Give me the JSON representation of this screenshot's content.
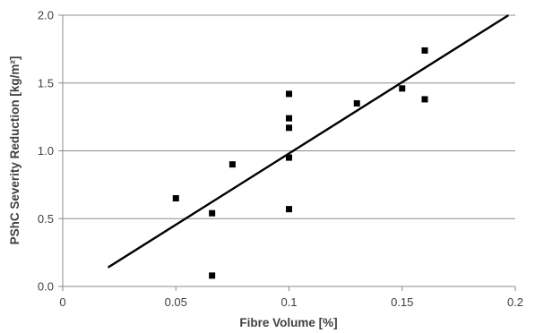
{
  "chart_data": {
    "type": "scatter",
    "title": "",
    "xlabel": "Fibre Volume [%]",
    "ylabel": "PShC Severity Reduction [kg/m²]",
    "xlim": [
      0,
      0.2
    ],
    "ylim": [
      0,
      2.0
    ],
    "x_ticks": [
      0,
      0.05,
      0.1,
      0.15,
      0.2
    ],
    "x_tick_labels": [
      "0",
      "0.05",
      "0.1",
      "0.15",
      "0.2"
    ],
    "y_ticks": [
      0,
      0.5,
      1.0,
      1.5,
      2.0
    ],
    "y_tick_labels": [
      "0.0",
      "0.5",
      "1.0",
      "1.5",
      "2.0"
    ],
    "grid": "horizontal",
    "legend": "none",
    "series": [
      {
        "marker": "square",
        "color": "#000000",
        "x": [
          0.05,
          0.066,
          0.066,
          0.075,
          0.1,
          0.1,
          0.1,
          0.1,
          0.1,
          0.13,
          0.15,
          0.16,
          0.16
        ],
        "y": [
          0.65,
          0.54,
          0.08,
          0.9,
          1.42,
          1.24,
          1.17,
          0.95,
          0.57,
          1.35,
          1.46,
          1.74,
          1.38
        ]
      }
    ],
    "trendline": {
      "color": "#000000",
      "x": [
        0.02,
        0.197
      ],
      "y": [
        0.14,
        2.0
      ]
    }
  }
}
